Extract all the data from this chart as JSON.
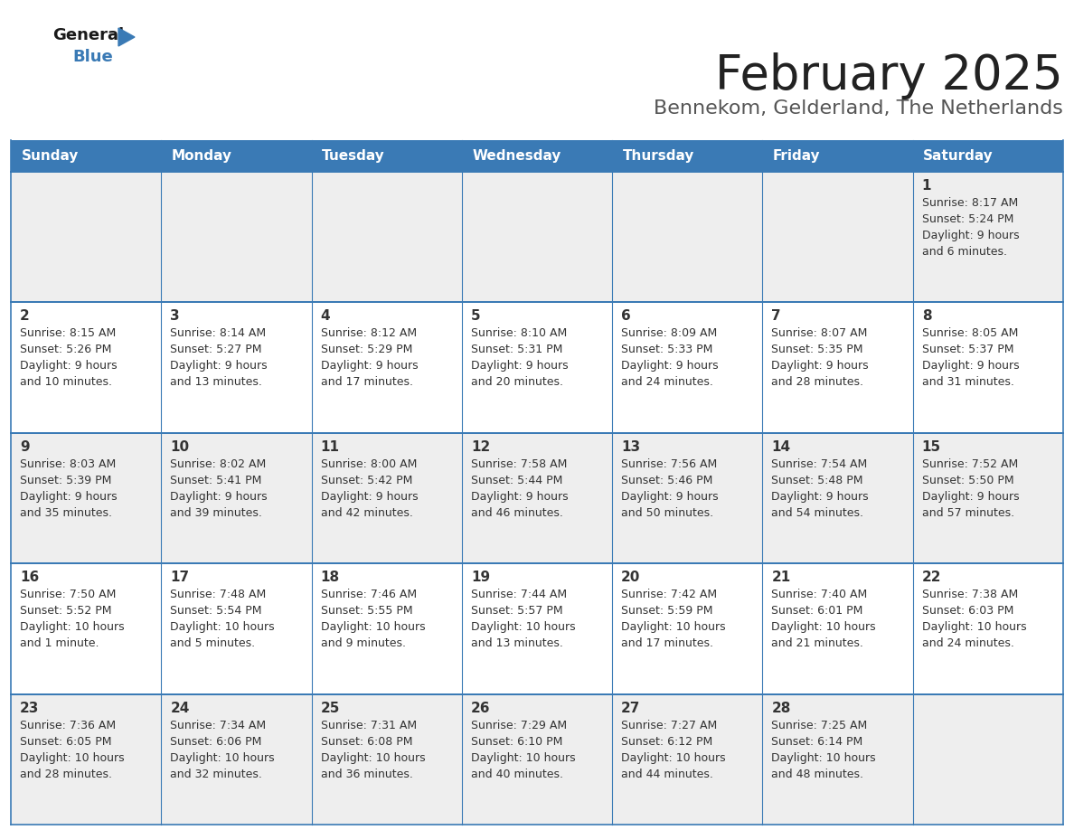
{
  "title": "February 2025",
  "subtitle": "Bennekom, Gelderland, The Netherlands",
  "days_of_week": [
    "Sunday",
    "Monday",
    "Tuesday",
    "Wednesday",
    "Thursday",
    "Friday",
    "Saturday"
  ],
  "header_bg": "#3a7ab5",
  "header_text": "#ffffff",
  "cell_bg_odd": "#eeeeee",
  "cell_bg_even": "#ffffff",
  "border_color": "#3a7ab5",
  "text_color": "#333333",
  "title_color": "#222222",
  "subtitle_color": "#555555",
  "logo_general_color": "#1a1a1a",
  "logo_blue_color": "#3a7ab5",
  "calendar_data": [
    {
      "day": 1,
      "week": 0,
      "col": 6,
      "sunrise": "8:17 AM",
      "sunset": "5:24 PM",
      "daylight_h": "9 hours",
      "daylight_m": "and 6 minutes."
    },
    {
      "day": 2,
      "week": 1,
      "col": 0,
      "sunrise": "8:15 AM",
      "sunset": "5:26 PM",
      "daylight_h": "9 hours",
      "daylight_m": "and 10 minutes."
    },
    {
      "day": 3,
      "week": 1,
      "col": 1,
      "sunrise": "8:14 AM",
      "sunset": "5:27 PM",
      "daylight_h": "9 hours",
      "daylight_m": "and 13 minutes."
    },
    {
      "day": 4,
      "week": 1,
      "col": 2,
      "sunrise": "8:12 AM",
      "sunset": "5:29 PM",
      "daylight_h": "9 hours",
      "daylight_m": "and 17 minutes."
    },
    {
      "day": 5,
      "week": 1,
      "col": 3,
      "sunrise": "8:10 AM",
      "sunset": "5:31 PM",
      "daylight_h": "9 hours",
      "daylight_m": "and 20 minutes."
    },
    {
      "day": 6,
      "week": 1,
      "col": 4,
      "sunrise": "8:09 AM",
      "sunset": "5:33 PM",
      "daylight_h": "9 hours",
      "daylight_m": "and 24 minutes."
    },
    {
      "day": 7,
      "week": 1,
      "col": 5,
      "sunrise": "8:07 AM",
      "sunset": "5:35 PM",
      "daylight_h": "9 hours",
      "daylight_m": "and 28 minutes."
    },
    {
      "day": 8,
      "week": 1,
      "col": 6,
      "sunrise": "8:05 AM",
      "sunset": "5:37 PM",
      "daylight_h": "9 hours",
      "daylight_m": "and 31 minutes."
    },
    {
      "day": 9,
      "week": 2,
      "col": 0,
      "sunrise": "8:03 AM",
      "sunset": "5:39 PM",
      "daylight_h": "9 hours",
      "daylight_m": "and 35 minutes."
    },
    {
      "day": 10,
      "week": 2,
      "col": 1,
      "sunrise": "8:02 AM",
      "sunset": "5:41 PM",
      "daylight_h": "9 hours",
      "daylight_m": "and 39 minutes."
    },
    {
      "day": 11,
      "week": 2,
      "col": 2,
      "sunrise": "8:00 AM",
      "sunset": "5:42 PM",
      "daylight_h": "9 hours",
      "daylight_m": "and 42 minutes."
    },
    {
      "day": 12,
      "week": 2,
      "col": 3,
      "sunrise": "7:58 AM",
      "sunset": "5:44 PM",
      "daylight_h": "9 hours",
      "daylight_m": "and 46 minutes."
    },
    {
      "day": 13,
      "week": 2,
      "col": 4,
      "sunrise": "7:56 AM",
      "sunset": "5:46 PM",
      "daylight_h": "9 hours",
      "daylight_m": "and 50 minutes."
    },
    {
      "day": 14,
      "week": 2,
      "col": 5,
      "sunrise": "7:54 AM",
      "sunset": "5:48 PM",
      "daylight_h": "9 hours",
      "daylight_m": "and 54 minutes."
    },
    {
      "day": 15,
      "week": 2,
      "col": 6,
      "sunrise": "7:52 AM",
      "sunset": "5:50 PM",
      "daylight_h": "9 hours",
      "daylight_m": "and 57 minutes."
    },
    {
      "day": 16,
      "week": 3,
      "col": 0,
      "sunrise": "7:50 AM",
      "sunset": "5:52 PM",
      "daylight_h": "10 hours",
      "daylight_m": "and 1 minute."
    },
    {
      "day": 17,
      "week": 3,
      "col": 1,
      "sunrise": "7:48 AM",
      "sunset": "5:54 PM",
      "daylight_h": "10 hours",
      "daylight_m": "and 5 minutes."
    },
    {
      "day": 18,
      "week": 3,
      "col": 2,
      "sunrise": "7:46 AM",
      "sunset": "5:55 PM",
      "daylight_h": "10 hours",
      "daylight_m": "and 9 minutes."
    },
    {
      "day": 19,
      "week": 3,
      "col": 3,
      "sunrise": "7:44 AM",
      "sunset": "5:57 PM",
      "daylight_h": "10 hours",
      "daylight_m": "and 13 minutes."
    },
    {
      "day": 20,
      "week": 3,
      "col": 4,
      "sunrise": "7:42 AM",
      "sunset": "5:59 PM",
      "daylight_h": "10 hours",
      "daylight_m": "and 17 minutes."
    },
    {
      "day": 21,
      "week": 3,
      "col": 5,
      "sunrise": "7:40 AM",
      "sunset": "6:01 PM",
      "daylight_h": "10 hours",
      "daylight_m": "and 21 minutes."
    },
    {
      "day": 22,
      "week": 3,
      "col": 6,
      "sunrise": "7:38 AM",
      "sunset": "6:03 PM",
      "daylight_h": "10 hours",
      "daylight_m": "and 24 minutes."
    },
    {
      "day": 23,
      "week": 4,
      "col": 0,
      "sunrise": "7:36 AM",
      "sunset": "6:05 PM",
      "daylight_h": "10 hours",
      "daylight_m": "and 28 minutes."
    },
    {
      "day": 24,
      "week": 4,
      "col": 1,
      "sunrise": "7:34 AM",
      "sunset": "6:06 PM",
      "daylight_h": "10 hours",
      "daylight_m": "and 32 minutes."
    },
    {
      "day": 25,
      "week": 4,
      "col": 2,
      "sunrise": "7:31 AM",
      "sunset": "6:08 PM",
      "daylight_h": "10 hours",
      "daylight_m": "and 36 minutes."
    },
    {
      "day": 26,
      "week": 4,
      "col": 3,
      "sunrise": "7:29 AM",
      "sunset": "6:10 PM",
      "daylight_h": "10 hours",
      "daylight_m": "and 40 minutes."
    },
    {
      "day": 27,
      "week": 4,
      "col": 4,
      "sunrise": "7:27 AM",
      "sunset": "6:12 PM",
      "daylight_h": "10 hours",
      "daylight_m": "and 44 minutes."
    },
    {
      "day": 28,
      "week": 4,
      "col": 5,
      "sunrise": "7:25 AM",
      "sunset": "6:14 PM",
      "daylight_h": "10 hours",
      "daylight_m": "and 48 minutes."
    }
  ]
}
